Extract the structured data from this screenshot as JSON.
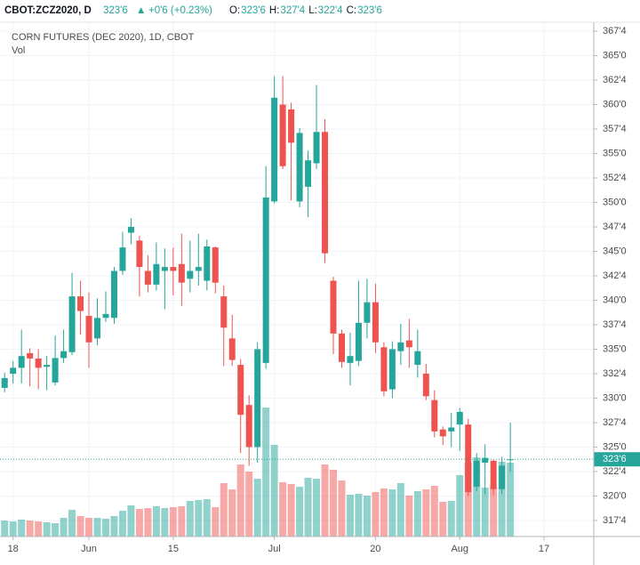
{
  "header": {
    "symbol": "CBOT:ZCZ2020, D",
    "price": "323'6",
    "change": "+0'6 (+0.23%)",
    "ohlc": [
      {
        "label": "O:",
        "value": "323'6"
      },
      {
        "label": "H:",
        "value": "327'4"
      },
      {
        "label": "L:",
        "value": "322'4"
      },
      {
        "label": "C:",
        "value": "323'6"
      }
    ]
  },
  "chart_data": {
    "type": "candlestick",
    "title": "CORN FUTURES (DEC 2020), 1D, CBOT",
    "volume_label": "Vol",
    "up_color": "#26a69a",
    "down_color": "#ef5350",
    "open": [
      331.05,
      332.5,
      333.1,
      334.6,
      334.05,
      333.2,
      331.6,
      334.1,
      334.7,
      340.4,
      338.4,
      336.1,
      338.2,
      338.2,
      343.0,
      346.9,
      346.1,
      343.0,
      341.6,
      343.0,
      343.4,
      343.7,
      342.2,
      343.0,
      342.0,
      345.4,
      340.4,
      336.1,
      333.4,
      329.3,
      325.0,
      333.6,
      350.1,
      360.0,
      359.5,
      350.1,
      351.6,
      354.0,
      357.2,
      342.0,
      336.6,
      333.6,
      333.8,
      337.7,
      339.8,
      335.2,
      330.9,
      334.8,
      335.9,
      333.4,
      332.5,
      329.8,
      326.8,
      326.6,
      327.3,
      327.3,
      320.95,
      323.4,
      323.6,
      320.7,
      323.75
    ],
    "high": [
      332.6,
      333.8,
      337.0,
      335.1,
      335.0,
      334.3,
      336.4,
      337.0,
      342.8,
      342.0,
      340.8,
      340.2,
      340.9,
      343.4,
      347.0,
      348.4,
      346.6,
      344.6,
      345.9,
      345.3,
      345.4,
      346.8,
      346.1,
      346.8,
      346.2,
      345.5,
      341.5,
      338.5,
      334.0,
      330.3,
      335.7,
      353.7,
      362.9,
      362.9,
      360.2,
      357.6,
      355.3,
      362.0,
      358.5,
      342.4,
      337.0,
      336.7,
      342.0,
      342.2,
      341.7,
      335.7,
      335.8,
      337.6,
      338.1,
      337.0,
      333.5,
      330.8,
      327.1,
      328.5,
      329.0,
      327.9,
      324.4,
      325.3,
      323.7,
      324.0,
      327.5
    ],
    "low": [
      330.6,
      331.5,
      331.5,
      331.2,
      330.9,
      330.8,
      331.3,
      333.6,
      334.4,
      336.5,
      333.1,
      335.4,
      337.8,
      337.6,
      342.6,
      345.7,
      340.4,
      340.8,
      341.0,
      339.1,
      340.5,
      339.4,
      340.8,
      341.5,
      341.0,
      340.7,
      333.3,
      333.3,
      324.4,
      323.1,
      323.4,
      333.0,
      349.9,
      353.4,
      350.2,
      349.5,
      348.5,
      353.4,
      343.8,
      334.5,
      333.1,
      331.3,
      333.3,
      336.1,
      334.6,
      330.2,
      330.0,
      333.4,
      333.1,
      332.1,
      329.8,
      326.0,
      325.2,
      325.0,
      324.6,
      320.0,
      320.5,
      320.2,
      320.1,
      320.2,
      322.5
    ],
    "close": [
      332.05,
      333.1,
      334.3,
      334.05,
      333.1,
      333.4,
      334.1,
      334.8,
      340.4,
      338.9,
      335.7,
      338.2,
      338.6,
      343.0,
      345.4,
      347.5,
      343.4,
      341.6,
      343.7,
      343.4,
      343.0,
      341.8,
      343.0,
      343.4,
      345.5,
      341.8,
      337.2,
      333.9,
      328.3,
      325.0,
      335.0,
      350.5,
      360.7,
      353.7,
      356.1,
      357.1,
      354.3,
      357.2,
      344.8,
      336.6,
      333.7,
      334.3,
      337.7,
      339.8,
      335.7,
      330.7,
      335.0,
      335.7,
      335.2,
      334.8,
      330.2,
      326.6,
      326.1,
      327.0,
      328.6,
      320.4,
      323.6,
      323.9,
      320.7,
      323.1,
      323.75
    ],
    "volume": [
      18,
      17,
      19,
      18,
      17,
      16,
      15,
      21,
      30,
      23,
      21,
      21,
      20,
      23,
      29,
      35,
      31,
      32,
      34,
      32,
      33,
      34,
      40,
      41,
      42,
      33,
      60,
      53,
      81,
      73,
      65,
      145,
      103,
      61,
      59,
      56,
      66,
      65,
      81,
      75,
      63,
      47,
      48,
      46,
      50,
      54,
      53,
      60,
      46,
      51,
      53,
      57,
      39,
      40,
      69,
      83,
      89,
      55,
      56,
      84,
      83
    ],
    "last_price": {
      "value": 323.75,
      "label": "323'6"
    },
    "xlim": [
      -0.55,
      69.9
    ],
    "xticks": [
      {
        "value": 1,
        "label": "18"
      },
      {
        "value": 10,
        "label": "Jun"
      },
      {
        "value": 20,
        "label": "15"
      },
      {
        "value": 32,
        "label": "Jul"
      },
      {
        "value": 44,
        "label": "20"
      },
      {
        "value": 54,
        "label": "Aug"
      },
      {
        "value": 64,
        "label": "17"
      }
    ],
    "ylim": [
      315.86,
      368.41
    ],
    "yticks": [
      {
        "value": 317.5,
        "label": "317'4"
      },
      {
        "value": 320,
        "label": "320'0"
      },
      {
        "value": 322.5,
        "label": "322'4"
      },
      {
        "value": 325,
        "label": "325'0"
      },
      {
        "value": 327.5,
        "label": "327'4"
      },
      {
        "value": 330,
        "label": "330'0"
      },
      {
        "value": 332.5,
        "label": "332'4"
      },
      {
        "value": 335,
        "label": "335'0"
      },
      {
        "value": 337.5,
        "label": "337'4"
      },
      {
        "value": 340,
        "label": "340'0"
      },
      {
        "value": 342.5,
        "label": "342'4"
      },
      {
        "value": 345,
        "label": "345'0"
      },
      {
        "value": 347.5,
        "label": "347'4"
      },
      {
        "value": 350,
        "label": "350'0"
      },
      {
        "value": 352.5,
        "label": "352'4"
      },
      {
        "value": 355,
        "label": "355'0"
      },
      {
        "value": 357.5,
        "label": "357'4"
      },
      {
        "value": 360,
        "label": "360'0"
      },
      {
        "value": 362.5,
        "label": "362'4"
      },
      {
        "value": 365,
        "label": "365'0"
      },
      {
        "value": 367.5,
        "label": "367'4"
      }
    ],
    "grid": true
  }
}
